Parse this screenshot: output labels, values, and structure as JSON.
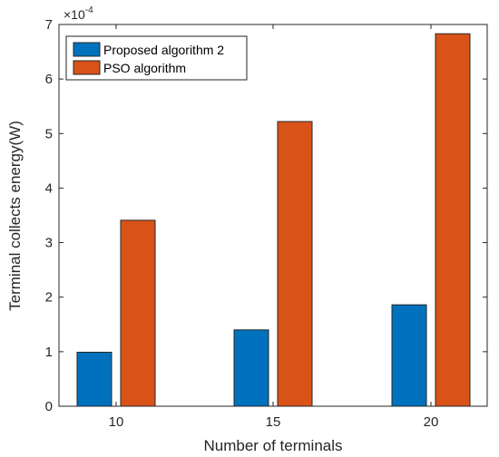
{
  "chart_data": {
    "type": "bar",
    "xlabel": "Number of terminals",
    "ylabel": "Terminal collects energy(W)",
    "categories": [
      "10",
      "15",
      "20"
    ],
    "y_multiplier": {
      "base": "×10",
      "exponent": "-4"
    },
    "ylim": [
      0,
      7
    ],
    "y_ticks": [
      0,
      1,
      2,
      3,
      4,
      5,
      6,
      7
    ],
    "grid": false,
    "legend_position": "top-left",
    "series": [
      {
        "name": "Proposed algorithm 2",
        "color": "#0072BD",
        "values": [
          0.99,
          1.4,
          1.86
        ]
      },
      {
        "name": "PSO algorithm",
        "color": "#D95319",
        "values": [
          3.41,
          5.22,
          6.83
        ]
      }
    ]
  }
}
